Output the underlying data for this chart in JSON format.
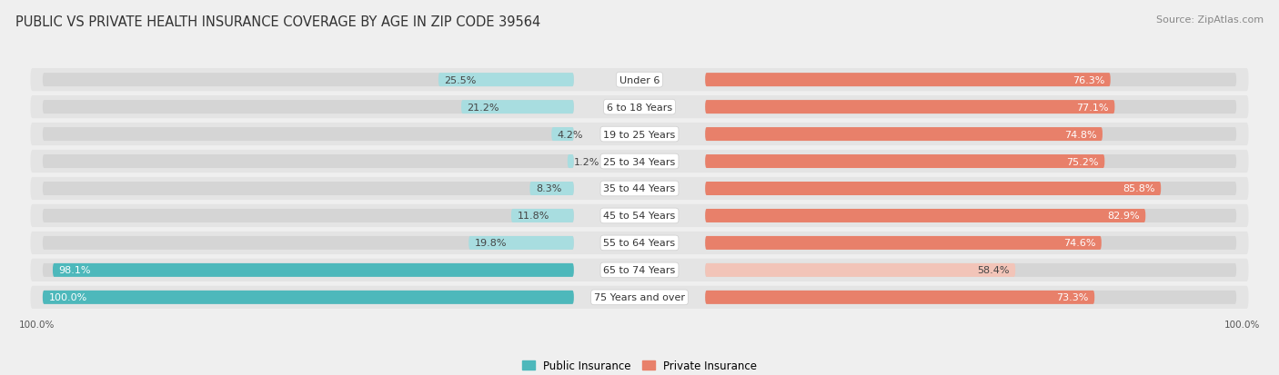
{
  "title": "PUBLIC VS PRIVATE HEALTH INSURANCE COVERAGE BY AGE IN ZIP CODE 39564",
  "source": "Source: ZipAtlas.com",
  "categories": [
    "Under 6",
    "6 to 18 Years",
    "19 to 25 Years",
    "25 to 34 Years",
    "35 to 44 Years",
    "45 to 54 Years",
    "55 to 64 Years",
    "65 to 74 Years",
    "75 Years and over"
  ],
  "public_values": [
    25.5,
    21.2,
    4.2,
    1.2,
    8.3,
    11.8,
    19.8,
    98.1,
    100.0
  ],
  "private_values": [
    76.3,
    77.1,
    74.8,
    75.2,
    85.8,
    82.9,
    74.6,
    58.4,
    73.3
  ],
  "public_color": "#4db8bb",
  "private_color": "#e8806a",
  "public_light_color": "#a8dde0",
  "private_light_color": "#f2c4b8",
  "bg_color": "#efefef",
  "row_bg": "#e4e4e4",
  "bar_track_color": "#d5d5d5",
  "title_fontsize": 10.5,
  "label_fontsize": 8,
  "value_fontsize": 8,
  "legend_fontsize": 8.5,
  "source_fontsize": 8
}
